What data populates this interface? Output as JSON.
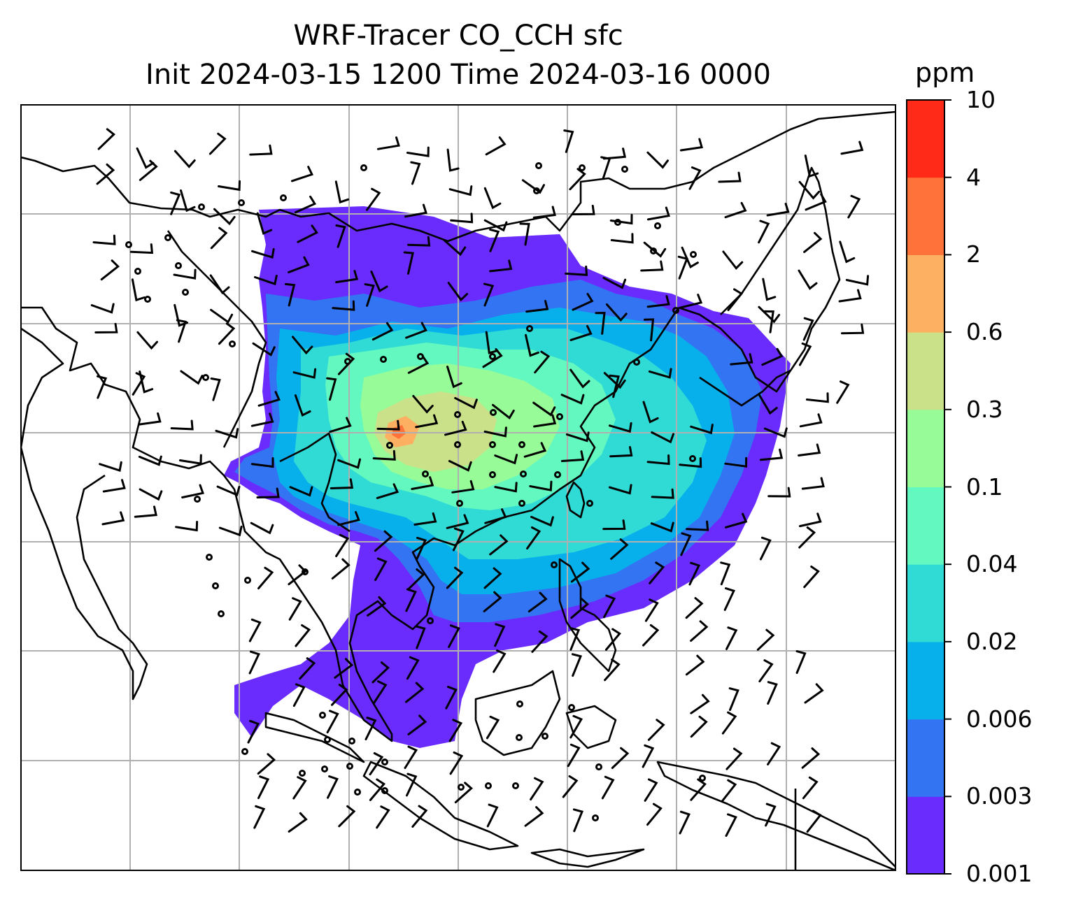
{
  "figure": {
    "title_line1": "WRF-Tracer CO_CCH sfc",
    "title_line2": "Init 2024-03-15 1200 Time 2024-03-16 0000",
    "colorbar_unit": "ppm",
    "colorbar_levels": [
      "0.001",
      "0.003",
      "0.006",
      "0.02",
      "0.04",
      "0.1",
      "0.3",
      "0.6",
      "2",
      "4",
      "10"
    ],
    "colorbar_colors": [
      "#6a2cfc",
      "#3374f2",
      "#07b0eb",
      "#30dbd5",
      "#63f8c0",
      "#97fb97",
      "#cae18a",
      "#fdb061",
      "#ff723a",
      "#ff2a17"
    ]
  },
  "map": {
    "region": "East Asia / Southeast Asia",
    "field": "CO_CCH surface concentration",
    "wind_barbs": true,
    "gridlines": true
  }
}
